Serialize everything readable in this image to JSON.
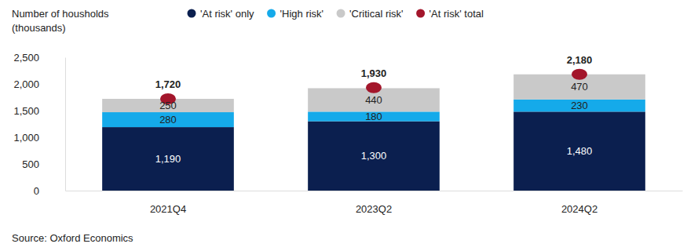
{
  "chart_data": {
    "type": "bar",
    "stacked": true,
    "data_labels": true,
    "grid": false,
    "legend": "top",
    "y_label": "Number of housholds\n(thousands)",
    "source": "Source: Oxford Economics",
    "categories": [
      "2021Q4",
      "2023Q2",
      "2024Q2"
    ],
    "series": [
      {
        "name": "'At risk' only",
        "color": "#0b1f4f",
        "values": [
          1190,
          1300,
          1480
        ],
        "value_labels": [
          "1,190",
          "1,300",
          "1,480"
        ]
      },
      {
        "name": "'High risk'",
        "color": "#15aaea",
        "values": [
          280,
          180,
          230
        ]
      },
      {
        "name": "'Critical risk'",
        "color": "#c9c9c9",
        "values": [
          250,
          440,
          470
        ]
      },
      {
        "name": "'At risk' total",
        "color": "#a3162b",
        "type": "scatter",
        "marker": "circle",
        "values": [
          1720,
          1930,
          2180
        ],
        "value_labels": [
          "1,720",
          "1,930",
          "2,180"
        ]
      }
    ],
    "ylim": [
      0,
      2500
    ],
    "yticks": [
      0,
      500,
      {
        "value": 1000,
        "label": "1,000"
      },
      {
        "value": 1500,
        "label": "1,500"
      },
      {
        "value": 2000,
        "label": "2,000"
      },
      {
        "value": 2500,
        "label": "2,500"
      }
    ]
  }
}
